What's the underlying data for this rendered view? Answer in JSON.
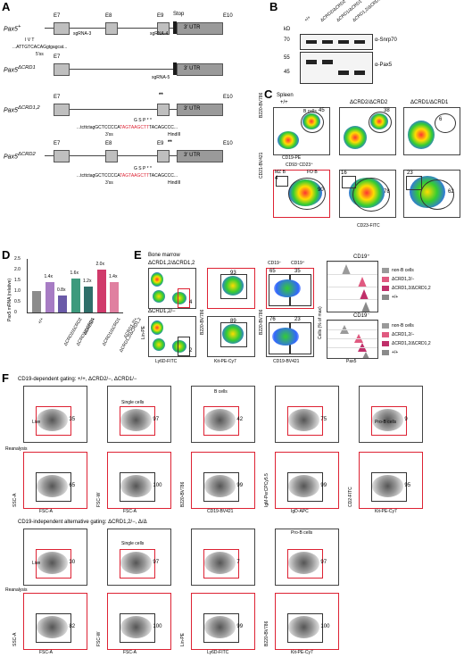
{
  "panels": {
    "a": "A",
    "b": "B",
    "c": "C",
    "d": "D",
    "e": "E",
    "f": "F"
  },
  "panelA": {
    "rows": [
      {
        "label": "Pax5",
        "sup": "+"
      },
      {
        "label": "Pax5",
        "sup": "ΔCRD1"
      },
      {
        "label": "Pax5",
        "sup": "ΔCRD1,2"
      },
      {
        "label": "Pax5",
        "sup": "ΔCRD2"
      }
    ],
    "exons": [
      "E7",
      "E8",
      "E9",
      "E10"
    ],
    "stop": "Stop",
    "utr": "3′ UTR",
    "sgrna3": "sgRNA-3",
    "sgrna4": "sgRNA-4",
    "sgrna5": "sgRNA-5",
    "ss5": "5′ss",
    "ss3": "3′ss",
    "aa1": "I  V  T",
    "seq1": "...ATTGTCACAGgtgagcat...",
    "aa2": "G  S  P  *  *",
    "seq2a": "...tcttctagGCTCCCCA",
    "seq2b": "TAGTAAGCTT",
    "seq2c": "TACAGCCC...",
    "hindiii": "HindIII",
    "stars": "**"
  },
  "panelB": {
    "kd": "kD",
    "m70": "70",
    "m55": "55",
    "m45": "45",
    "lanes": [
      "+/+",
      "ΔCRD2/ΔCRD2",
      "ΔCRD1/ΔCRD1",
      "ΔCRD1,2/ΔCRD1,2"
    ],
    "ab1": "α-Snrp70",
    "ab2": "α-Pax5"
  },
  "panelC": {
    "tissue": "Spleen",
    "cols": [
      "+/+",
      "ΔCRD2/ΔCRD2",
      "ΔCRD1/ΔCRD1"
    ],
    "bcells": "B cells",
    "v_b": [
      "45",
      "38",
      "6"
    ],
    "xlab1": "CD19-PE",
    "ylab1": "B220-BV786",
    "gate2": "CD93⁻CD23⁺",
    "mzb": "MZ B",
    "fob": "FO B",
    "mz": [
      "4",
      "16",
      "23"
    ],
    "fo": [
      "90",
      "78",
      "62"
    ],
    "xlab2": "CD23-FITC",
    "ylab2": "CD21-BV421"
  },
  "panelD": {
    "ylabel": "Pax5 mRNA (relative)",
    "yticks": [
      "0",
      "0.5",
      "1.0",
      "1.5",
      "2.0",
      "2.5"
    ],
    "bars": [
      {
        "label": "+/+",
        "value": 1.0,
        "fold": "",
        "color": "#8c8c8c"
      },
      {
        "label": "ΔCRD2/ΔCRD2",
        "value": 1.4,
        "fold": "1.4x",
        "color": "#a77cc4"
      },
      {
        "label": "ΔCRD2/ΔCRD1",
        "value": 0.8,
        "fold": "0.8x",
        "color": "#6a5aa8"
      },
      {
        "label": "ΔCRD2/+",
        "value": 1.6,
        "fold": "1.6x",
        "color": "#3d9a7d"
      },
      {
        "label": "ΔCRD1/ΔCRD1",
        "value": 1.2,
        "fold": "1.2x",
        "color": "#2f6f6a"
      },
      {
        "label": "ΔCRD1,2/ΔCRD1,2",
        "value": 2.0,
        "fold": "2.0x",
        "color": "#d03a6b"
      },
      {
        "label": "ΔCRD1,2/+",
        "value": 1.4,
        "fold": "1.4x",
        "color": "#e080a0"
      }
    ]
  },
  "panelE": {
    "tissue": "Bone marrow",
    "row1": "ΔCRD1,2/ΔCRD1,2",
    "row2": "ΔCRD1,2/−",
    "g1": [
      "4",
      "2"
    ],
    "kit": [
      "93",
      "89"
    ],
    "cd19neg": "CD19⁻",
    "cd19pos": "CD19⁺",
    "split1": [
      "65",
      "35"
    ],
    "split2": [
      "76",
      "23"
    ],
    "x1": "Ly6D-FITC",
    "y1": "Lin-PE",
    "x2": "Kit-PE-Cy7",
    "y2": "B220-BV786",
    "x3": "CD19-BV421",
    "histTop": "CD19⁺",
    "histBot": "CD19⁻",
    "histY": "Cells (% of max)",
    "histX": "Pax5",
    "legend": [
      "non-B cells",
      "ΔCRD1,2/−",
      "ΔCRD1,2/ΔCRD1,2",
      "+/+"
    ],
    "legendColors": [
      "#9a9a9a",
      "#e05a80",
      "#c0306a",
      "#8a8a8a"
    ]
  },
  "panelF": {
    "title1": "CD19-dependent gating: +/+, ΔCRD2/−, ΔCRD1/−",
    "title2": "CD19-independent alternative gating: ΔCRD1,2/−, Δ/Δ",
    "reanalysis": "Reanalysis",
    "live": "Live",
    "single": "Single cells",
    "bcells": "B cells",
    "prob": "Pro-B cells",
    "top1": [
      "35",
      "97",
      "42",
      "75",
      "9"
    ],
    "bot1": [
      "65",
      "100",
      "99",
      "99",
      "95"
    ],
    "top2": [
      "30",
      "97",
      "7",
      "97"
    ],
    "bot2": [
      "82",
      "100",
      "99",
      "100"
    ],
    "xl1": [
      "FSC-A",
      "FSC-A",
      "CD19-BV421",
      "IgD-APC",
      "Kit-PE-Cy7"
    ],
    "yl1": [
      "SSC-A",
      "FSC-W",
      "B220-BV786",
      "IgM-PerCPCy5.5",
      "CD2-FITC"
    ],
    "xl2": [
      "FSC-A",
      "FSC-A",
      "Ly6D-FITC",
      "Kit-PE-Cy7"
    ],
    "yl2": [
      "SSC-A",
      "FSC-W",
      "Lin-PE",
      "B220-BV786"
    ]
  }
}
